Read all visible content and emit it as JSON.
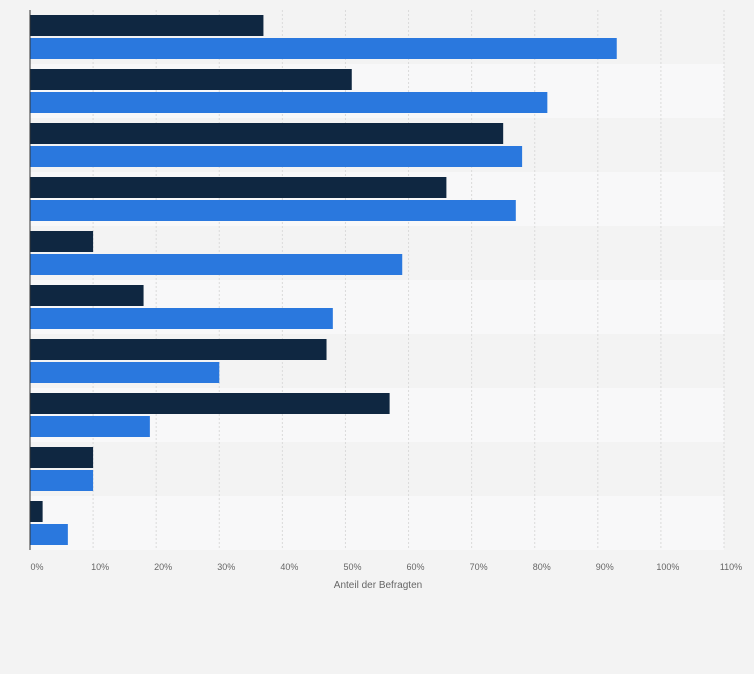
{
  "chart_data": {
    "type": "bar",
    "orientation": "horizontal",
    "categories": [
      "",
      "",
      "",
      "",
      "",
      "",
      "",
      "",
      "",
      ""
    ],
    "series": [
      {
        "values": [
          37,
          51,
          75,
          66,
          10,
          18,
          47,
          57,
          10,
          2
        ],
        "color": "#0f2741"
      },
      {
        "values": [
          93,
          82,
          78,
          77,
          59,
          48,
          30,
          19,
          10,
          6
        ],
        "color": "#2a78de"
      }
    ],
    "xlabel": "Anteil der Befragten",
    "ylabel": "",
    "xlim": [
      0,
      110
    ],
    "x_ticks": [
      0,
      10,
      20,
      30,
      40,
      50,
      60,
      70,
      80,
      90,
      100,
      110
    ],
    "tick_labels": [
      "0%",
      "10%",
      "20%",
      "30%",
      "40%",
      "50%",
      "60%",
      "70%",
      "80%",
      "90%",
      "100%",
      "110%"
    ],
    "grid": true,
    "legend": "none",
    "colors": {
      "background": "#f3f3f3",
      "band_alt": "#f8f8f9",
      "grid": "#dadada",
      "axis": "#333333",
      "tick_text": "#666666"
    }
  }
}
